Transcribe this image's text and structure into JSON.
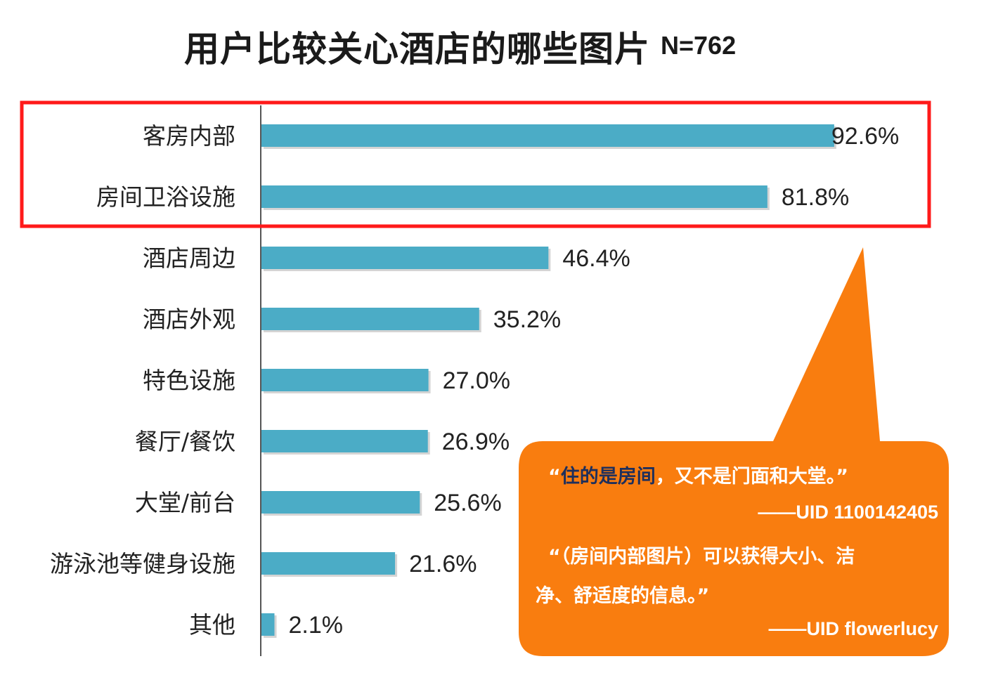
{
  "header": {
    "title": "用户比较关心酒店的哪些图片",
    "sample_size": "N=762"
  },
  "colors": {
    "bar": "#4bacc6",
    "highlight_box": "#ff1a1a",
    "callout": "#f97d0f",
    "callout_emphasis": "#1e2f5c"
  },
  "chart_data": {
    "type": "bar",
    "orientation": "horizontal",
    "title": "用户比较关心酒店的哪些图片",
    "subtitle": "N=762",
    "unit": "%",
    "categories": [
      "客房内部",
      "房间卫浴设施",
      "酒店周边",
      "酒店外观",
      "特色设施",
      "餐厅/餐饮",
      "大堂/前台",
      "游泳池等健身设施",
      "其他"
    ],
    "values": [
      92.6,
      81.8,
      46.4,
      35.2,
      27.0,
      26.9,
      25.6,
      21.6,
      2.1
    ],
    "value_labels": [
      "92.6%",
      "81.8%",
      "46.4%",
      "35.2%",
      "27.0%",
      "26.9%",
      "25.6%",
      "21.6%",
      "2.1%"
    ],
    "xlim": [
      0,
      100
    ],
    "grid": false,
    "legend": "none",
    "highlighted_categories": [
      "客房内部",
      "房间卫浴设施"
    ]
  },
  "callout": {
    "quote1_emphasis": "住的是房间",
    "quote1_rest": "，又不是门面和大堂。",
    "open_quote": "“",
    "close_quote": "”",
    "attribution1": "——UID 1100142405",
    "quote2_line1": "“（房间内部图片）可以获得大小、洁",
    "quote2_line2": "净、舒适度的信息。”",
    "attribution2": "——UID flowerlucy"
  }
}
